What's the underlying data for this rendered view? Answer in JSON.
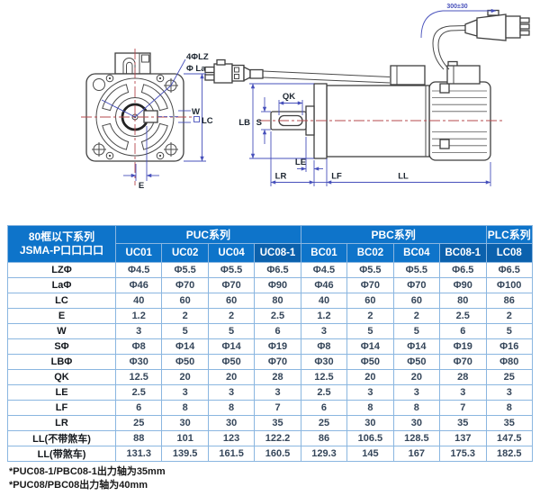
{
  "diagram": {
    "labels": {
      "holes": "4ΦLZ",
      "la": "Φ La",
      "w": "W",
      "lc": "LC",
      "e": "E",
      "lb": "LB",
      "s": "S",
      "qk": "QK",
      "le": "LE",
      "lr": "LR",
      "lf": "LF",
      "ll": "LL",
      "cable_length": "300±30"
    }
  },
  "table": {
    "corner_header": {
      "line1": "80框以下系列",
      "line2": "JSMA-P口口口口"
    },
    "groups": [
      {
        "label": "PUC系列"
      },
      {
        "label": "PBC系列"
      },
      {
        "label": "PLC系列"
      }
    ],
    "columns": [
      "UC01",
      "UC02",
      "UC04",
      "UC08-1",
      "BC01",
      "BC02",
      "BC04",
      "BC08-1",
      "LC08"
    ],
    "highlight_column_indexes": [
      3,
      7
    ],
    "rows": [
      {
        "label": "LZΦ",
        "values": [
          "Φ4.5",
          "Φ5.5",
          "Φ5.5",
          "Φ6.5",
          "Φ4.5",
          "Φ5.5",
          "Φ5.5",
          "Φ6.5",
          "Φ6.5"
        ]
      },
      {
        "label": "LaΦ",
        "values": [
          "Φ46",
          "Φ70",
          "Φ70",
          "Φ90",
          "Φ46",
          "Φ70",
          "Φ70",
          "Φ90",
          "Φ100"
        ]
      },
      {
        "label": "LC",
        "values": [
          "40",
          "60",
          "60",
          "80",
          "40",
          "60",
          "60",
          "80",
          "86"
        ]
      },
      {
        "label": "E",
        "values": [
          "1.2",
          "2",
          "2",
          "2.5",
          "1.2",
          "2",
          "2",
          "2.5",
          "2"
        ]
      },
      {
        "label": "W",
        "values": [
          "3",
          "5",
          "5",
          "6",
          "3",
          "5",
          "5",
          "6",
          "5"
        ]
      },
      {
        "label": "SΦ",
        "values": [
          "Φ8",
          "Φ14",
          "Φ14",
          "Φ19",
          "Φ8",
          "Φ14",
          "Φ14",
          "Φ19",
          "Φ16"
        ]
      },
      {
        "label": "LBΦ",
        "values": [
          "Φ30",
          "Φ50",
          "Φ50",
          "Φ70",
          "Φ30",
          "Φ50",
          "Φ50",
          "Φ70",
          "Φ80"
        ]
      },
      {
        "label": "QK",
        "values": [
          "12.5",
          "20",
          "20",
          "28",
          "12.5",
          "20",
          "20",
          "28",
          "25"
        ]
      },
      {
        "label": "LE",
        "values": [
          "2.5",
          "3",
          "3",
          "3",
          "2.5",
          "3",
          "3",
          "3",
          "3"
        ]
      },
      {
        "label": "LF",
        "values": [
          "6",
          "8",
          "8",
          "7",
          "6",
          "8",
          "8",
          "7",
          "8"
        ]
      },
      {
        "label": "LR",
        "values": [
          "25",
          "30",
          "30",
          "35",
          "25",
          "30",
          "30",
          "35",
          "35"
        ]
      },
      {
        "label": "LL(不带煞车)",
        "values": [
          "88",
          "101",
          "123",
          "122.2",
          "86",
          "106.5",
          "128.5",
          "137",
          "147.5"
        ]
      },
      {
        "label": "LL(带煞车)",
        "values": [
          "131.3",
          "139.5",
          "161.5",
          "160.5",
          "129.3",
          "145",
          "167",
          "175.3",
          "182.5"
        ]
      }
    ]
  },
  "notes": [
    "*PUC08-1/PBC08-1出力轴为35mm",
    "*PUC08/PBC08出力轴为40mm"
  ],
  "colors": {
    "header_bg": "#0e74ca",
    "header_bg_dark": "#0b61ad",
    "grid_border": "#8ab6e0",
    "dimension_line": "#4750bb",
    "center_line": "#b5484e"
  }
}
